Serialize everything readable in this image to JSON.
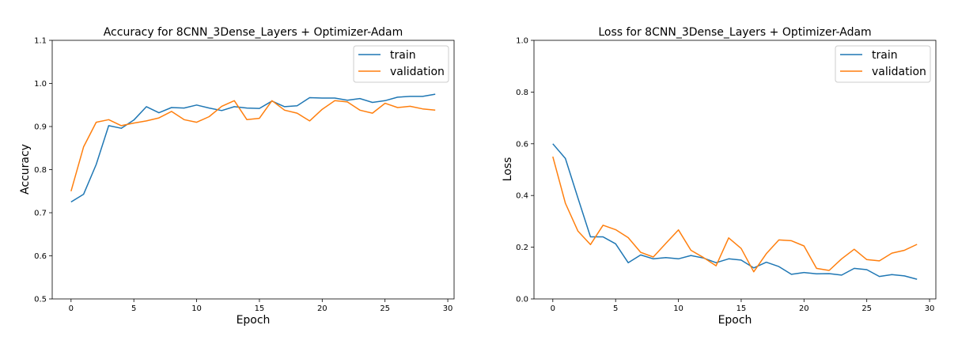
{
  "colors": {
    "train": "#1f77b4",
    "validation": "#ff7f0e",
    "axis": "#000000",
    "legend_border": "#cccccc"
  },
  "chart_data": [
    {
      "type": "line",
      "title": "Accuracy for 8CNN_3Dense_Layers + Optimizer-Adam",
      "xlabel": "Epoch",
      "ylabel": "Accuracy",
      "xlim": [
        -1.5,
        30.5
      ],
      "ylim": [
        0.5,
        1.1
      ],
      "xticks": [
        0,
        5,
        10,
        15,
        20,
        25,
        30
      ],
      "yticks": [
        0.5,
        0.6,
        0.7,
        0.8,
        0.9,
        1.0,
        1.1
      ],
      "ytick_labels": [
        "0.5",
        "0.6",
        "0.7",
        "0.8",
        "0.9",
        "1.0",
        "1.1"
      ],
      "grid": false,
      "legend": "top-right",
      "x": [
        0,
        1,
        2,
        3,
        4,
        5,
        6,
        7,
        8,
        9,
        10,
        11,
        12,
        13,
        14,
        15,
        16,
        17,
        18,
        19,
        20,
        21,
        22,
        23,
        24,
        25,
        26,
        27,
        28,
        29
      ],
      "series": [
        {
          "name": "train",
          "values": [
            0.725,
            0.743,
            0.812,
            0.902,
            0.896,
            0.915,
            0.946,
            0.932,
            0.944,
            0.943,
            0.95,
            0.943,
            0.937,
            0.946,
            0.943,
            0.942,
            0.959,
            0.946,
            0.948,
            0.967,
            0.966,
            0.966,
            0.961,
            0.965,
            0.956,
            0.96,
            0.968,
            0.97,
            0.97,
            0.975
          ]
        },
        {
          "name": "validation",
          "values": [
            0.75,
            0.853,
            0.91,
            0.916,
            0.902,
            0.908,
            0.913,
            0.92,
            0.935,
            0.916,
            0.91,
            0.923,
            0.947,
            0.96,
            0.916,
            0.919,
            0.96,
            0.938,
            0.931,
            0.913,
            0.94,
            0.96,
            0.957,
            0.938,
            0.931,
            0.954,
            0.944,
            0.947,
            0.941,
            0.938
          ]
        }
      ]
    },
    {
      "type": "line",
      "title": "Loss for 8CNN_3Dense_Layers + Optimizer-Adam",
      "xlabel": "Epoch",
      "ylabel": "Loss",
      "xlim": [
        -1.5,
        30.5
      ],
      "ylim": [
        0.0,
        1.0
      ],
      "xticks": [
        0,
        5,
        10,
        15,
        20,
        25,
        30
      ],
      "yticks": [
        0.0,
        0.2,
        0.4,
        0.6,
        0.8,
        1.0
      ],
      "ytick_labels": [
        "0.0",
        "0.2",
        "0.4",
        "0.6",
        "0.8",
        "1.0"
      ],
      "grid": false,
      "legend": "top-right",
      "x": [
        0,
        1,
        2,
        3,
        4,
        5,
        6,
        7,
        8,
        9,
        10,
        11,
        12,
        13,
        14,
        15,
        16,
        17,
        18,
        19,
        20,
        21,
        22,
        23,
        24,
        25,
        26,
        27,
        28,
        29
      ],
      "series": [
        {
          "name": "train",
          "values": [
            0.6,
            0.543,
            0.39,
            0.24,
            0.24,
            0.213,
            0.14,
            0.17,
            0.155,
            0.16,
            0.155,
            0.168,
            0.158,
            0.14,
            0.155,
            0.15,
            0.12,
            0.142,
            0.125,
            0.095,
            0.102,
            0.097,
            0.098,
            0.092,
            0.118,
            0.113,
            0.087,
            0.094,
            0.089,
            0.076
          ]
        },
        {
          "name": "validation",
          "values": [
            0.55,
            0.37,
            0.262,
            0.21,
            0.285,
            0.268,
            0.237,
            0.18,
            0.162,
            0.215,
            0.267,
            0.188,
            0.16,
            0.128,
            0.236,
            0.195,
            0.105,
            0.175,
            0.228,
            0.225,
            0.205,
            0.118,
            0.11,
            0.155,
            0.192,
            0.152,
            0.147,
            0.177,
            0.188,
            0.211
          ]
        }
      ]
    }
  ]
}
